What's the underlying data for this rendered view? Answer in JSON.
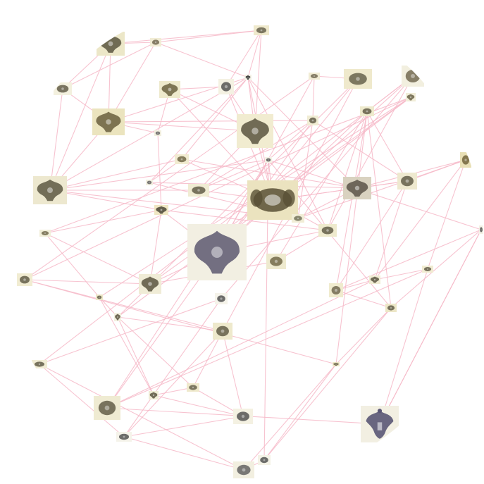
{
  "graph": {
    "edge_color": "#f6b9c8",
    "ornament_ink": "#5a5540",
    "ornament_ink_violet": "#5e5a78",
    "nodes": [
      {
        "id": 1,
        "tint": "#ece7c8",
        "ink": "#5a5540",
        "shape": "crest"
      },
      {
        "id": 2,
        "tint": "#f1ecd4",
        "ink": "#6a6248",
        "shape": "small"
      },
      {
        "id": 3,
        "tint": "#efe9cc",
        "ink": "#5f5a45",
        "shape": "small"
      },
      {
        "id": 4,
        "tint": "#f3f0de",
        "ink": "#5a5540",
        "shape": "small"
      },
      {
        "id": 5,
        "tint": "#ebe4be",
        "ink": "#6a5f3e",
        "shape": "crest"
      },
      {
        "id": 6,
        "tint": "#f2efdf",
        "ink": "#5a5a5a",
        "shape": "small"
      },
      {
        "id": 7,
        "tint": "#eeeacd",
        "ink": "#6a6140",
        "shape": "crest"
      },
      {
        "id": 8,
        "tint": "#f4f1e2",
        "ink": "#4a4a4a",
        "shape": "small"
      },
      {
        "id": 9,
        "tint": "#ede8cf",
        "ink": "#5d5843",
        "shape": "crest"
      },
      {
        "id": 10,
        "tint": "#f1ecd0",
        "ink": "#5a5540",
        "shape": "crest"
      },
      {
        "id": 11,
        "tint": "#f4f2e6",
        "ink": "#2f2f2f",
        "shape": "eagle"
      },
      {
        "id": 12,
        "tint": "#f1ebd0",
        "ink": "#6a6140",
        "shape": "small"
      },
      {
        "id": 13,
        "tint": "#f2efe0",
        "ink": "#5a5a5a",
        "shape": "small"
      },
      {
        "id": 14,
        "tint": "#efe6c2",
        "ink": "#4a4536",
        "shape": "crest"
      },
      {
        "id": 15,
        "tint": "#f0ecd3",
        "ink": "#5a5540",
        "shape": "small"
      },
      {
        "id": 16,
        "tint": "#f3f1e2",
        "ink": "#4a4a4a",
        "shape": "small"
      },
      {
        "id": 17,
        "tint": "#ebe3bf",
        "ink": "#595035",
        "shape": "wide"
      },
      {
        "id": 18,
        "tint": "#d9d2c0",
        "ink": "#5a5448",
        "shape": "crest"
      },
      {
        "id": 19,
        "tint": "#f1edd6",
        "ink": "#6b6a52",
        "shape": "small"
      },
      {
        "id": 20,
        "tint": "#f3f0e2",
        "ink": "#5a5a5a",
        "shape": "small"
      },
      {
        "id": 21,
        "tint": "#f2efe2",
        "ink": "#5d5870",
        "shape": "crest"
      },
      {
        "id": 22,
        "tint": "#eeeacd",
        "ink": "#5a5540",
        "shape": "small"
      },
      {
        "id": 23,
        "tint": "#eeeacf",
        "ink": "#6a6140",
        "shape": "small"
      },
      {
        "id": 24,
        "tint": "#f0ecd6",
        "ink": "#5a5540",
        "shape": "crest"
      },
      {
        "id": 25,
        "tint": "#f1eed8",
        "ink": "#6a6244",
        "shape": "small"
      },
      {
        "id": 26,
        "tint": "#eee9cf",
        "ink": "#5a5540",
        "shape": "small"
      },
      {
        "id": 27,
        "tint": "#e8dfb5",
        "ink": "#6a5d34",
        "shape": "small"
      },
      {
        "id": 28,
        "tint": "#f1ecd4",
        "ink": "#6a6248",
        "shape": "small"
      },
      {
        "id": 29,
        "tint": "#efe9cc",
        "ink": "#5f5a45",
        "shape": "small"
      },
      {
        "id": 30,
        "tint": "#f2efdf",
        "ink": "#6a6248",
        "shape": "small"
      },
      {
        "id": 31,
        "tint": "#eeeacd",
        "ink": "#5a5540",
        "shape": "small"
      },
      {
        "id": 32,
        "tint": "#f1edd8",
        "ink": "#6a6248",
        "shape": "crest"
      },
      {
        "id": 33,
        "tint": "#f1ecd2",
        "ink": "#5a5540",
        "shape": "small"
      },
      {
        "id": 34,
        "tint": "#f0ebce",
        "ink": "#6a6248",
        "shape": "small"
      },
      {
        "id": 35,
        "tint": "#f0ecd3",
        "ink": "#5a5540",
        "shape": "crest"
      },
      {
        "id": 36,
        "tint": "#f1ecd2",
        "ink": "#5a5540",
        "shape": "small"
      },
      {
        "id": 37,
        "tint": "#ece6c6",
        "ink": "#5a5540",
        "shape": "small"
      },
      {
        "id": 38,
        "tint": "#f3f0e0",
        "ink": "#5a5540",
        "shape": "crest"
      },
      {
        "id": 39,
        "tint": "#f5f3ea",
        "ink": "#4a4a4a",
        "shape": "small"
      },
      {
        "id": 40,
        "tint": "#f2efe2",
        "ink": "#5a5675",
        "shape": "eagle"
      },
      {
        "id": 41,
        "tint": "#eee9cc",
        "ink": "#5a5540",
        "shape": "small"
      },
      {
        "id": 42,
        "tint": "#f1ecd4",
        "ink": "#5a5540",
        "shape": "small"
      },
      {
        "id": 43,
        "tint": "#efe9c9",
        "ink": "#6a6248",
        "shape": "crest"
      },
      {
        "id": 44,
        "tint": "#ece6c6",
        "ink": "#5a5540",
        "shape": "small"
      },
      {
        "id": 45,
        "tint": "#f4f2e6",
        "ink": "#4a4a4a",
        "shape": "small"
      },
      {
        "id": 46,
        "tint": "#efebd2",
        "ink": "#5a5540",
        "shape": "small"
      },
      {
        "id": 47,
        "tint": "#f0ecd6",
        "ink": "#5a5540",
        "shape": "crest"
      },
      {
        "id": 48,
        "tint": "#efe9cc",
        "ink": "#5f5a45",
        "shape": "small"
      },
      {
        "id": 49,
        "tint": "#f5f3ea",
        "ink": "#4a4a4a",
        "shape": "small"
      },
      {
        "id": 50,
        "tint": "#f4f1e2",
        "ink": "#4a4a4a",
        "shape": "small"
      },
      {
        "id": 51,
        "tint": "#f2efe0",
        "ink": "#5a5a5a",
        "shape": "small"
      },
      {
        "id": 52,
        "tint": "#f4f2e6",
        "ink": "#4a4a4a",
        "shape": "small"
      },
      {
        "id": 53,
        "tint": "#f4f2e6",
        "ink": "#4a4a4a",
        "shape": "small"
      },
      {
        "id": 54,
        "tint": "#f0ecd3",
        "ink": "#5a5540",
        "shape": "small"
      }
    ],
    "edges": [
      [
        1,
        5
      ],
      [
        1,
        4
      ],
      [
        1,
        2
      ],
      [
        1,
        9
      ],
      [
        1,
        3
      ],
      [
        2,
        3
      ],
      [
        2,
        11
      ],
      [
        2,
        4
      ],
      [
        2,
        5
      ],
      [
        3,
        11
      ],
      [
        3,
        10
      ],
      [
        3,
        8
      ],
      [
        4,
        9
      ],
      [
        4,
        5
      ],
      [
        5,
        10
      ],
      [
        5,
        9
      ],
      [
        5,
        6
      ],
      [
        5,
        11
      ],
      [
        5,
        20
      ],
      [
        6,
        14
      ],
      [
        6,
        7
      ],
      [
        7,
        10
      ],
      [
        7,
        17
      ],
      [
        7,
        8
      ],
      [
        8,
        10
      ],
      [
        8,
        17
      ],
      [
        9,
        11
      ],
      [
        9,
        14
      ],
      [
        9,
        15
      ],
      [
        9,
        16
      ],
      [
        9,
        12
      ],
      [
        9,
        19
      ],
      [
        10,
        11
      ],
      [
        10,
        17
      ],
      [
        10,
        15
      ],
      [
        11,
        12
      ],
      [
        11,
        13
      ],
      [
        11,
        17
      ],
      [
        11,
        22
      ],
      [
        11,
        18
      ],
      [
        12,
        13
      ],
      [
        12,
        18
      ],
      [
        12,
        17
      ],
      [
        13,
        18
      ],
      [
        13,
        19
      ],
      [
        14,
        21
      ],
      [
        14,
        22
      ],
      [
        14,
        24
      ],
      [
        14,
        25
      ],
      [
        15,
        17
      ],
      [
        15,
        16
      ],
      [
        15,
        20
      ],
      [
        16,
        17
      ],
      [
        16,
        21
      ],
      [
        17,
        21
      ],
      [
        17,
        22
      ],
      [
        17,
        26
      ],
      [
        17,
        18
      ],
      [
        17,
        31
      ],
      [
        18,
        19
      ],
      [
        18,
        26
      ],
      [
        18,
        27
      ],
      [
        19,
        27
      ],
      [
        19,
        20
      ],
      [
        20,
        28
      ],
      [
        20,
        26
      ],
      [
        21,
        22
      ],
      [
        21,
        28
      ],
      [
        21,
        29
      ],
      [
        21,
        30
      ],
      [
        21,
        24
      ],
      [
        22,
        23
      ],
      [
        22,
        30
      ],
      [
        22,
        31
      ],
      [
        23,
        31
      ],
      [
        23,
        24
      ],
      [
        24,
        25
      ],
      [
        24,
        32
      ],
      [
        24,
        33
      ],
      [
        25,
        32
      ],
      [
        25,
        37
      ],
      [
        26,
        27
      ],
      [
        26,
        34
      ],
      [
        26,
        35
      ],
      [
        26,
        31
      ],
      [
        27,
        35
      ],
      [
        27,
        36
      ],
      [
        28,
        29
      ],
      [
        28,
        33
      ],
      [
        29,
        38
      ],
      [
        29,
        41
      ],
      [
        30,
        31
      ],
      [
        30,
        39
      ],
      [
        30,
        42
      ],
      [
        31,
        34
      ],
      [
        31,
        43
      ],
      [
        31,
        44
      ],
      [
        32,
        33
      ],
      [
        32,
        37
      ],
      [
        32,
        38
      ],
      [
        33,
        41
      ],
      [
        33,
        43
      ],
      [
        34,
        35
      ],
      [
        34,
        44
      ],
      [
        34,
        45
      ],
      [
        35,
        36
      ],
      [
        35,
        46
      ],
      [
        36,
        40
      ],
      [
        36,
        46
      ],
      [
        37,
        38
      ],
      [
        37,
        47
      ],
      [
        38,
        41
      ],
      [
        38,
        47
      ],
      [
        38,
        48
      ],
      [
        39,
        42
      ],
      [
        39,
        49
      ],
      [
        40,
        46
      ],
      [
        40,
        45
      ],
      [
        41,
        48
      ],
      [
        41,
        49
      ],
      [
        41,
        50
      ],
      [
        42,
        49
      ],
      [
        42,
        51
      ],
      [
        43,
        44
      ],
      [
        43,
        51
      ],
      [
        43,
        52
      ],
      [
        44,
        45
      ],
      [
        44,
        52
      ],
      [
        44,
        53
      ],
      [
        45,
        53
      ],
      [
        45,
        40
      ],
      [
        46,
        54
      ],
      [
        46,
        53
      ],
      [
        47,
        48
      ],
      [
        47,
        50
      ],
      [
        48,
        50
      ],
      [
        49,
        50
      ],
      [
        49,
        51
      ],
      [
        51,
        52
      ],
      [
        52,
        53
      ],
      [
        53,
        54
      ]
    ]
  }
}
